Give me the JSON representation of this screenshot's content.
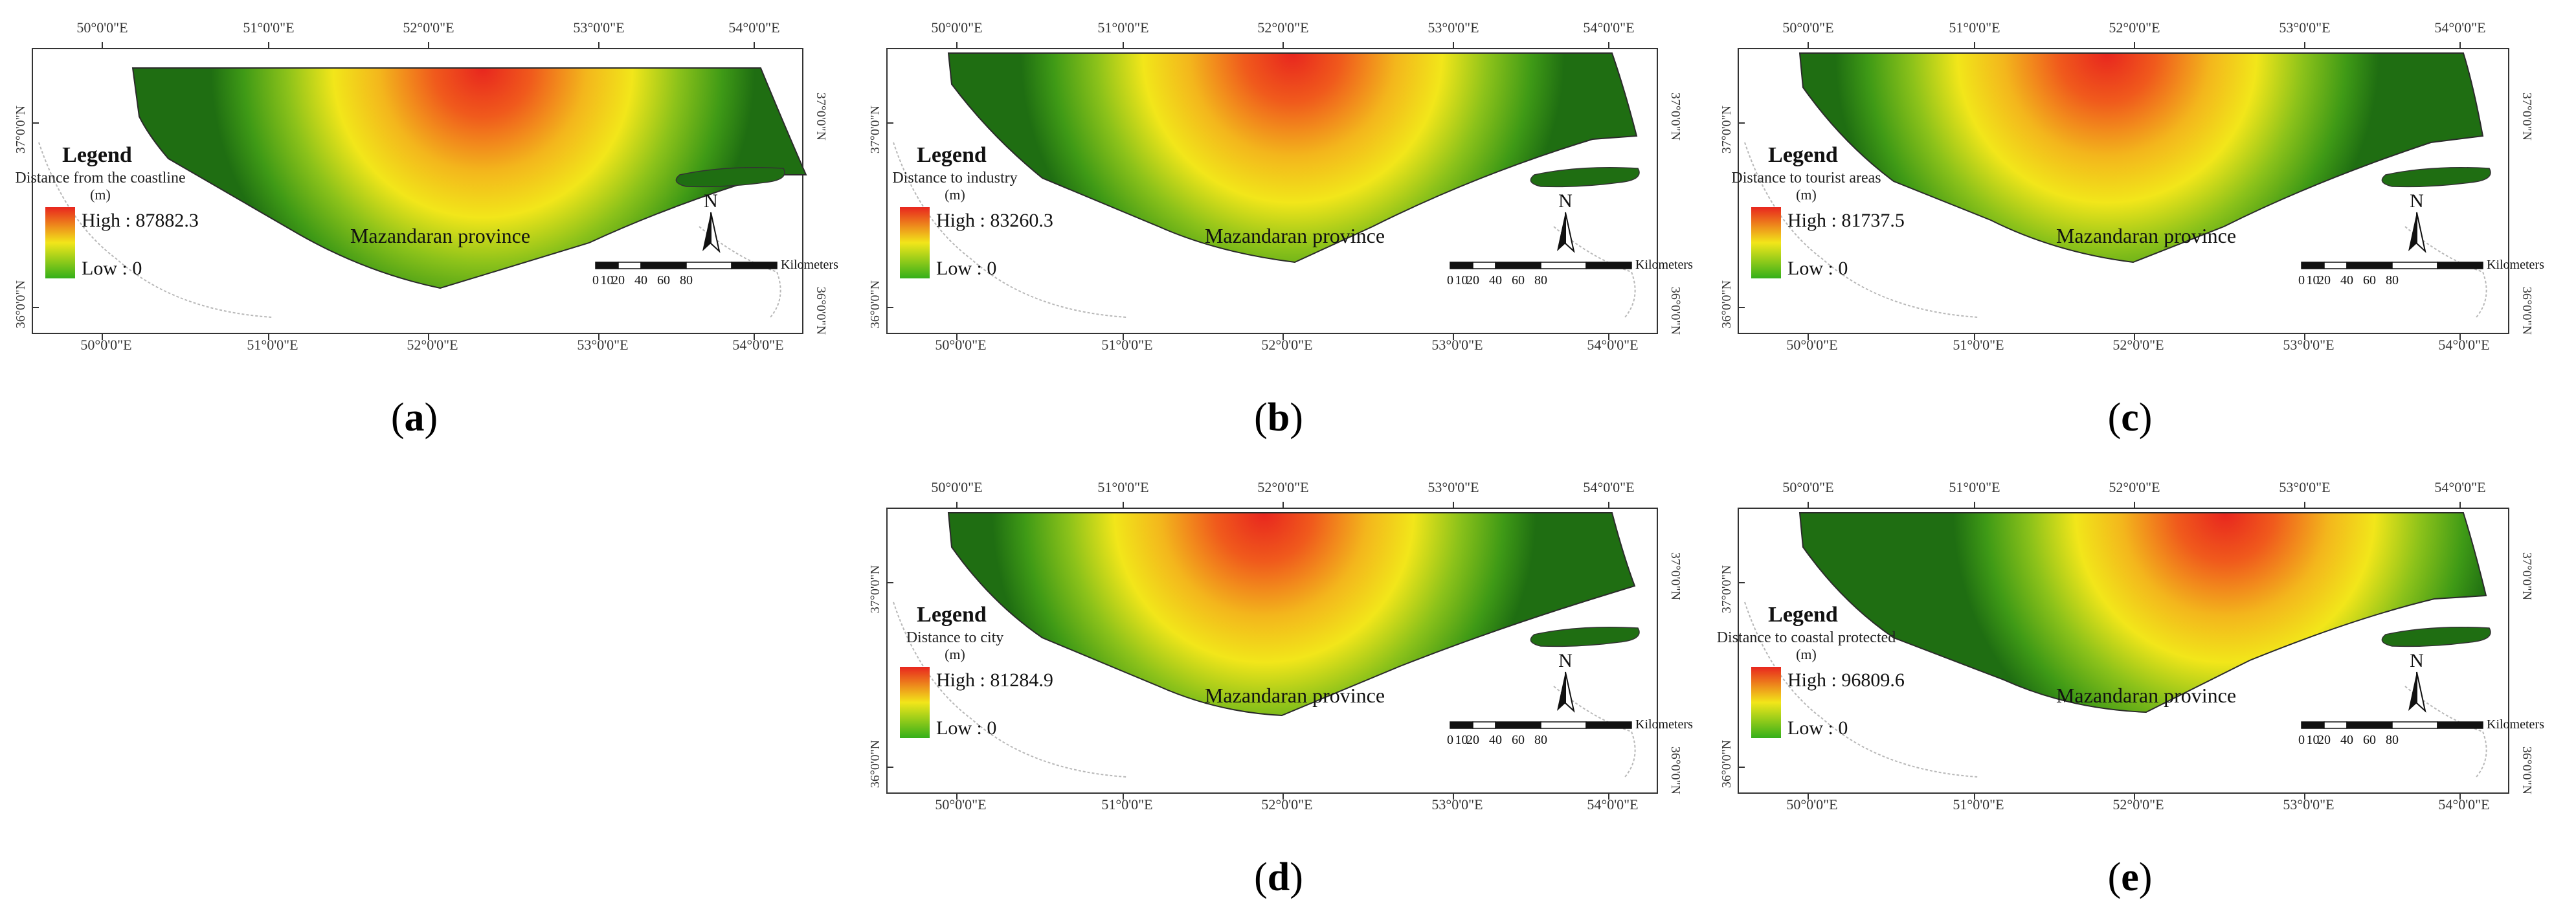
{
  "coords": {
    "top_lon": [
      "50°0'0\"E",
      "51°0'0\"E",
      "52°0'0\"E",
      "53°0'0\"E",
      "54°0'0\"E"
    ],
    "bottom_lon": [
      "50°0'0\"E",
      "51°0'0\"E",
      "52°0'0\"E",
      "53°0'0\"E",
      "54°0'0\"E"
    ],
    "lat_top": "37°0'0\"N",
    "lat_bottom": "36°0'0\"N"
  },
  "scale_bar": {
    "unit": "Kilometers",
    "ticks": [
      "0",
      "10",
      "20",
      "40",
      "60",
      "80"
    ]
  },
  "north_label": "N",
  "legend_title": "Legend",
  "province_label": "Mazandaran province",
  "colors": {
    "high": "#e8261e",
    "mid": "#f2e61a",
    "low": "#1f6e12"
  },
  "panels": [
    {
      "id": "a",
      "caption": "a",
      "legend_label": "Distance from the coastline",
      "legend_unit": "(m)",
      "high": "High : 87882.3",
      "low": "Low : 0"
    },
    {
      "id": "b",
      "caption": "b",
      "legend_label": "Distance to industry",
      "legend_unit": "(m)",
      "high": "High : 83260.3",
      "low": "Low : 0"
    },
    {
      "id": "c",
      "caption": "c",
      "legend_label": "Distance to tourist areas",
      "legend_unit": "(m)",
      "high": "High : 81737.5",
      "low": "Low : 0"
    },
    {
      "id": "d",
      "caption": "d",
      "legend_label": "Distance to city",
      "legend_unit": "(m)",
      "high": "High : 81284.9",
      "low": "Low : 0"
    },
    {
      "id": "e",
      "caption": "e",
      "legend_label": "Distance to coastal protected",
      "legend_unit": "(m)",
      "high": "High : 96809.6",
      "low": "Low : 0"
    }
  ]
}
